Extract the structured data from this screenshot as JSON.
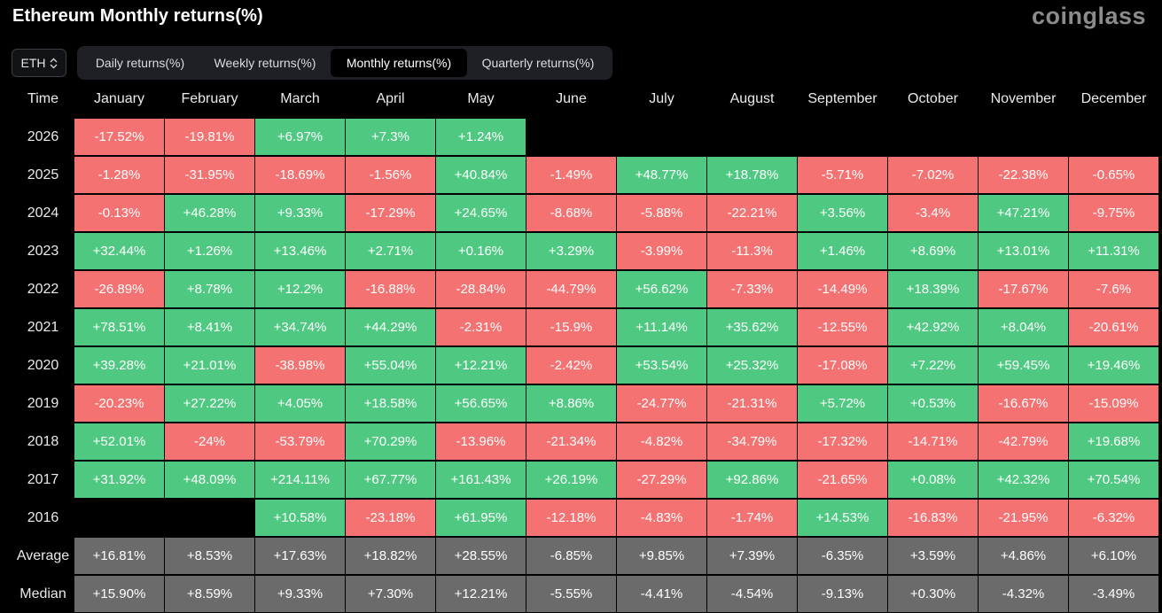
{
  "title": "Ethereum Monthly returns(%)",
  "brand": "coinglass",
  "asset_select": {
    "value": "ETH",
    "icon": "up-down-chevron-icon"
  },
  "tabs": [
    {
      "label": "Daily returns(%)",
      "active": false
    },
    {
      "label": "Weekly returns(%)",
      "active": false
    },
    {
      "label": "Monthly returns(%)",
      "active": true
    },
    {
      "label": "Quarterly returns(%)",
      "active": false
    }
  ],
  "colors": {
    "positive": "#4fc982",
    "negative": "#f57273",
    "stat": "#6b6b6b",
    "background": "#000000"
  },
  "table": {
    "time_header": "Time",
    "months": [
      "January",
      "February",
      "March",
      "April",
      "May",
      "June",
      "July",
      "August",
      "September",
      "October",
      "November",
      "December"
    ],
    "rows": [
      {
        "label": "2026",
        "values": [
          "-17.52%",
          "-19.81%",
          "+6.97%",
          "+7.3%",
          "+1.24%",
          "",
          "",
          "",
          "",
          "",
          "",
          ""
        ]
      },
      {
        "label": "2025",
        "values": [
          "-1.28%",
          "-31.95%",
          "-18.69%",
          "-1.56%",
          "+40.84%",
          "-1.49%",
          "+48.77%",
          "+18.78%",
          "-5.71%",
          "-7.02%",
          "-22.38%",
          "-0.65%"
        ]
      },
      {
        "label": "2024",
        "values": [
          "-0.13%",
          "+46.28%",
          "+9.33%",
          "-17.29%",
          "+24.65%",
          "-8.68%",
          "-5.88%",
          "-22.21%",
          "+3.56%",
          "-3.4%",
          "+47.21%",
          "-9.75%"
        ]
      },
      {
        "label": "2023",
        "values": [
          "+32.44%",
          "+1.26%",
          "+13.46%",
          "+2.71%",
          "+0.16%",
          "+3.29%",
          "-3.99%",
          "-11.3%",
          "+1.46%",
          "+8.69%",
          "+13.01%",
          "+11.31%"
        ]
      },
      {
        "label": "2022",
        "values": [
          "-26.89%",
          "+8.78%",
          "+12.2%",
          "-16.88%",
          "-28.84%",
          "-44.79%",
          "+56.62%",
          "-7.33%",
          "-14.49%",
          "+18.39%",
          "-17.67%",
          "-7.6%"
        ]
      },
      {
        "label": "2021",
        "values": [
          "+78.51%",
          "+8.41%",
          "+34.74%",
          "+44.29%",
          "-2.31%",
          "-15.9%",
          "+11.14%",
          "+35.62%",
          "-12.55%",
          "+42.92%",
          "+8.04%",
          "-20.61%"
        ]
      },
      {
        "label": "2020",
        "values": [
          "+39.28%",
          "+21.01%",
          "-38.98%",
          "+55.04%",
          "+12.21%",
          "-2.42%",
          "+53.54%",
          "+25.32%",
          "-17.08%",
          "+7.22%",
          "+59.45%",
          "+19.46%"
        ]
      },
      {
        "label": "2019",
        "values": [
          "-20.23%",
          "+27.22%",
          "+4.05%",
          "+18.58%",
          "+56.65%",
          "+8.86%",
          "-24.77%",
          "-21.31%",
          "+5.72%",
          "+0.53%",
          "-16.67%",
          "-15.09%"
        ]
      },
      {
        "label": "2018",
        "values": [
          "+52.01%",
          "-24%",
          "-53.79%",
          "+70.29%",
          "-13.96%",
          "-21.34%",
          "-4.82%",
          "-34.79%",
          "-17.32%",
          "-14.71%",
          "-42.79%",
          "+19.68%"
        ]
      },
      {
        "label": "2017",
        "values": [
          "+31.92%",
          "+48.09%",
          "+214.11%",
          "+67.77%",
          "+161.43%",
          "+26.19%",
          "-27.29%",
          "+92.86%",
          "-21.65%",
          "+0.08%",
          "+42.32%",
          "+70.54%"
        ]
      },
      {
        "label": "2016",
        "values": [
          "",
          "",
          "+10.58%",
          "-23.18%",
          "+61.95%",
          "-12.18%",
          "-4.83%",
          "-1.74%",
          "+14.53%",
          "-16.83%",
          "-21.95%",
          "-6.32%"
        ]
      }
    ],
    "stats": [
      {
        "label": "Average",
        "values": [
          "+16.81%",
          "+8.53%",
          "+17.63%",
          "+18.82%",
          "+28.55%",
          "-6.85%",
          "+9.85%",
          "+7.39%",
          "-6.35%",
          "+3.59%",
          "+4.86%",
          "+6.10%"
        ]
      },
      {
        "label": "Median",
        "values": [
          "+15.90%",
          "+8.59%",
          "+9.33%",
          "+7.30%",
          "+12.21%",
          "-5.55%",
          "-4.41%",
          "-4.54%",
          "-9.13%",
          "+0.30%",
          "-4.32%",
          "-3.49%"
        ]
      }
    ]
  }
}
